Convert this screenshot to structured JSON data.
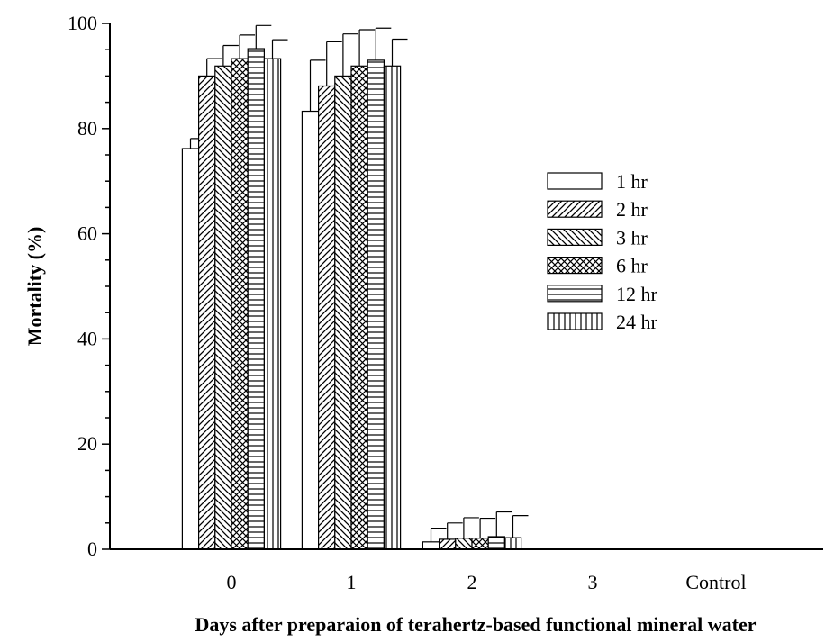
{
  "chart_data": {
    "type": "bar",
    "title": "",
    "xlabel": "Days after preparaion of terahertz-based functional mineral water",
    "ylabel": "Mortality (%)",
    "ylim": [
      0,
      100
    ],
    "yticks": [
      "0",
      "20",
      "40",
      "60",
      "80",
      "100"
    ],
    "categories": [
      "0",
      "1",
      "2",
      "3",
      "Control"
    ],
    "legend_position": "right",
    "series": [
      {
        "name": "1 hr",
        "pattern": "none",
        "values": [
          76.2,
          83.3,
          1.4,
          0,
          0
        ],
        "errors": [
          1.9,
          9.7,
          2.6,
          0,
          0
        ]
      },
      {
        "name": "2 hr",
        "pattern": "hatch-fwd",
        "values": [
          90.0,
          88.1,
          1.9,
          0,
          0
        ],
        "errors": [
          3.3,
          8.4,
          3.1,
          0,
          0
        ]
      },
      {
        "name": "3 hr",
        "pattern": "hatch-back",
        "values": [
          91.9,
          90.0,
          2.1,
          0,
          0
        ],
        "errors": [
          3.9,
          8.0,
          3.9,
          0,
          0
        ]
      },
      {
        "name": "6 hr",
        "pattern": "crosshatch",
        "values": [
          93.3,
          91.9,
          2.1,
          0,
          0
        ],
        "errors": [
          4.5,
          6.9,
          3.8,
          0,
          0
        ]
      },
      {
        "name": "12 hr",
        "pattern": "horizontal",
        "values": [
          95.2,
          93.0,
          2.4,
          0,
          0
        ],
        "errors": [
          4.4,
          6.1,
          4.7,
          0,
          0
        ]
      },
      {
        "name": "24 hr",
        "pattern": "vertical",
        "values": [
          93.3,
          91.9,
          2.2,
          0,
          0
        ],
        "errors": [
          3.6,
          5.1,
          4.2,
          0,
          0
        ]
      }
    ]
  }
}
